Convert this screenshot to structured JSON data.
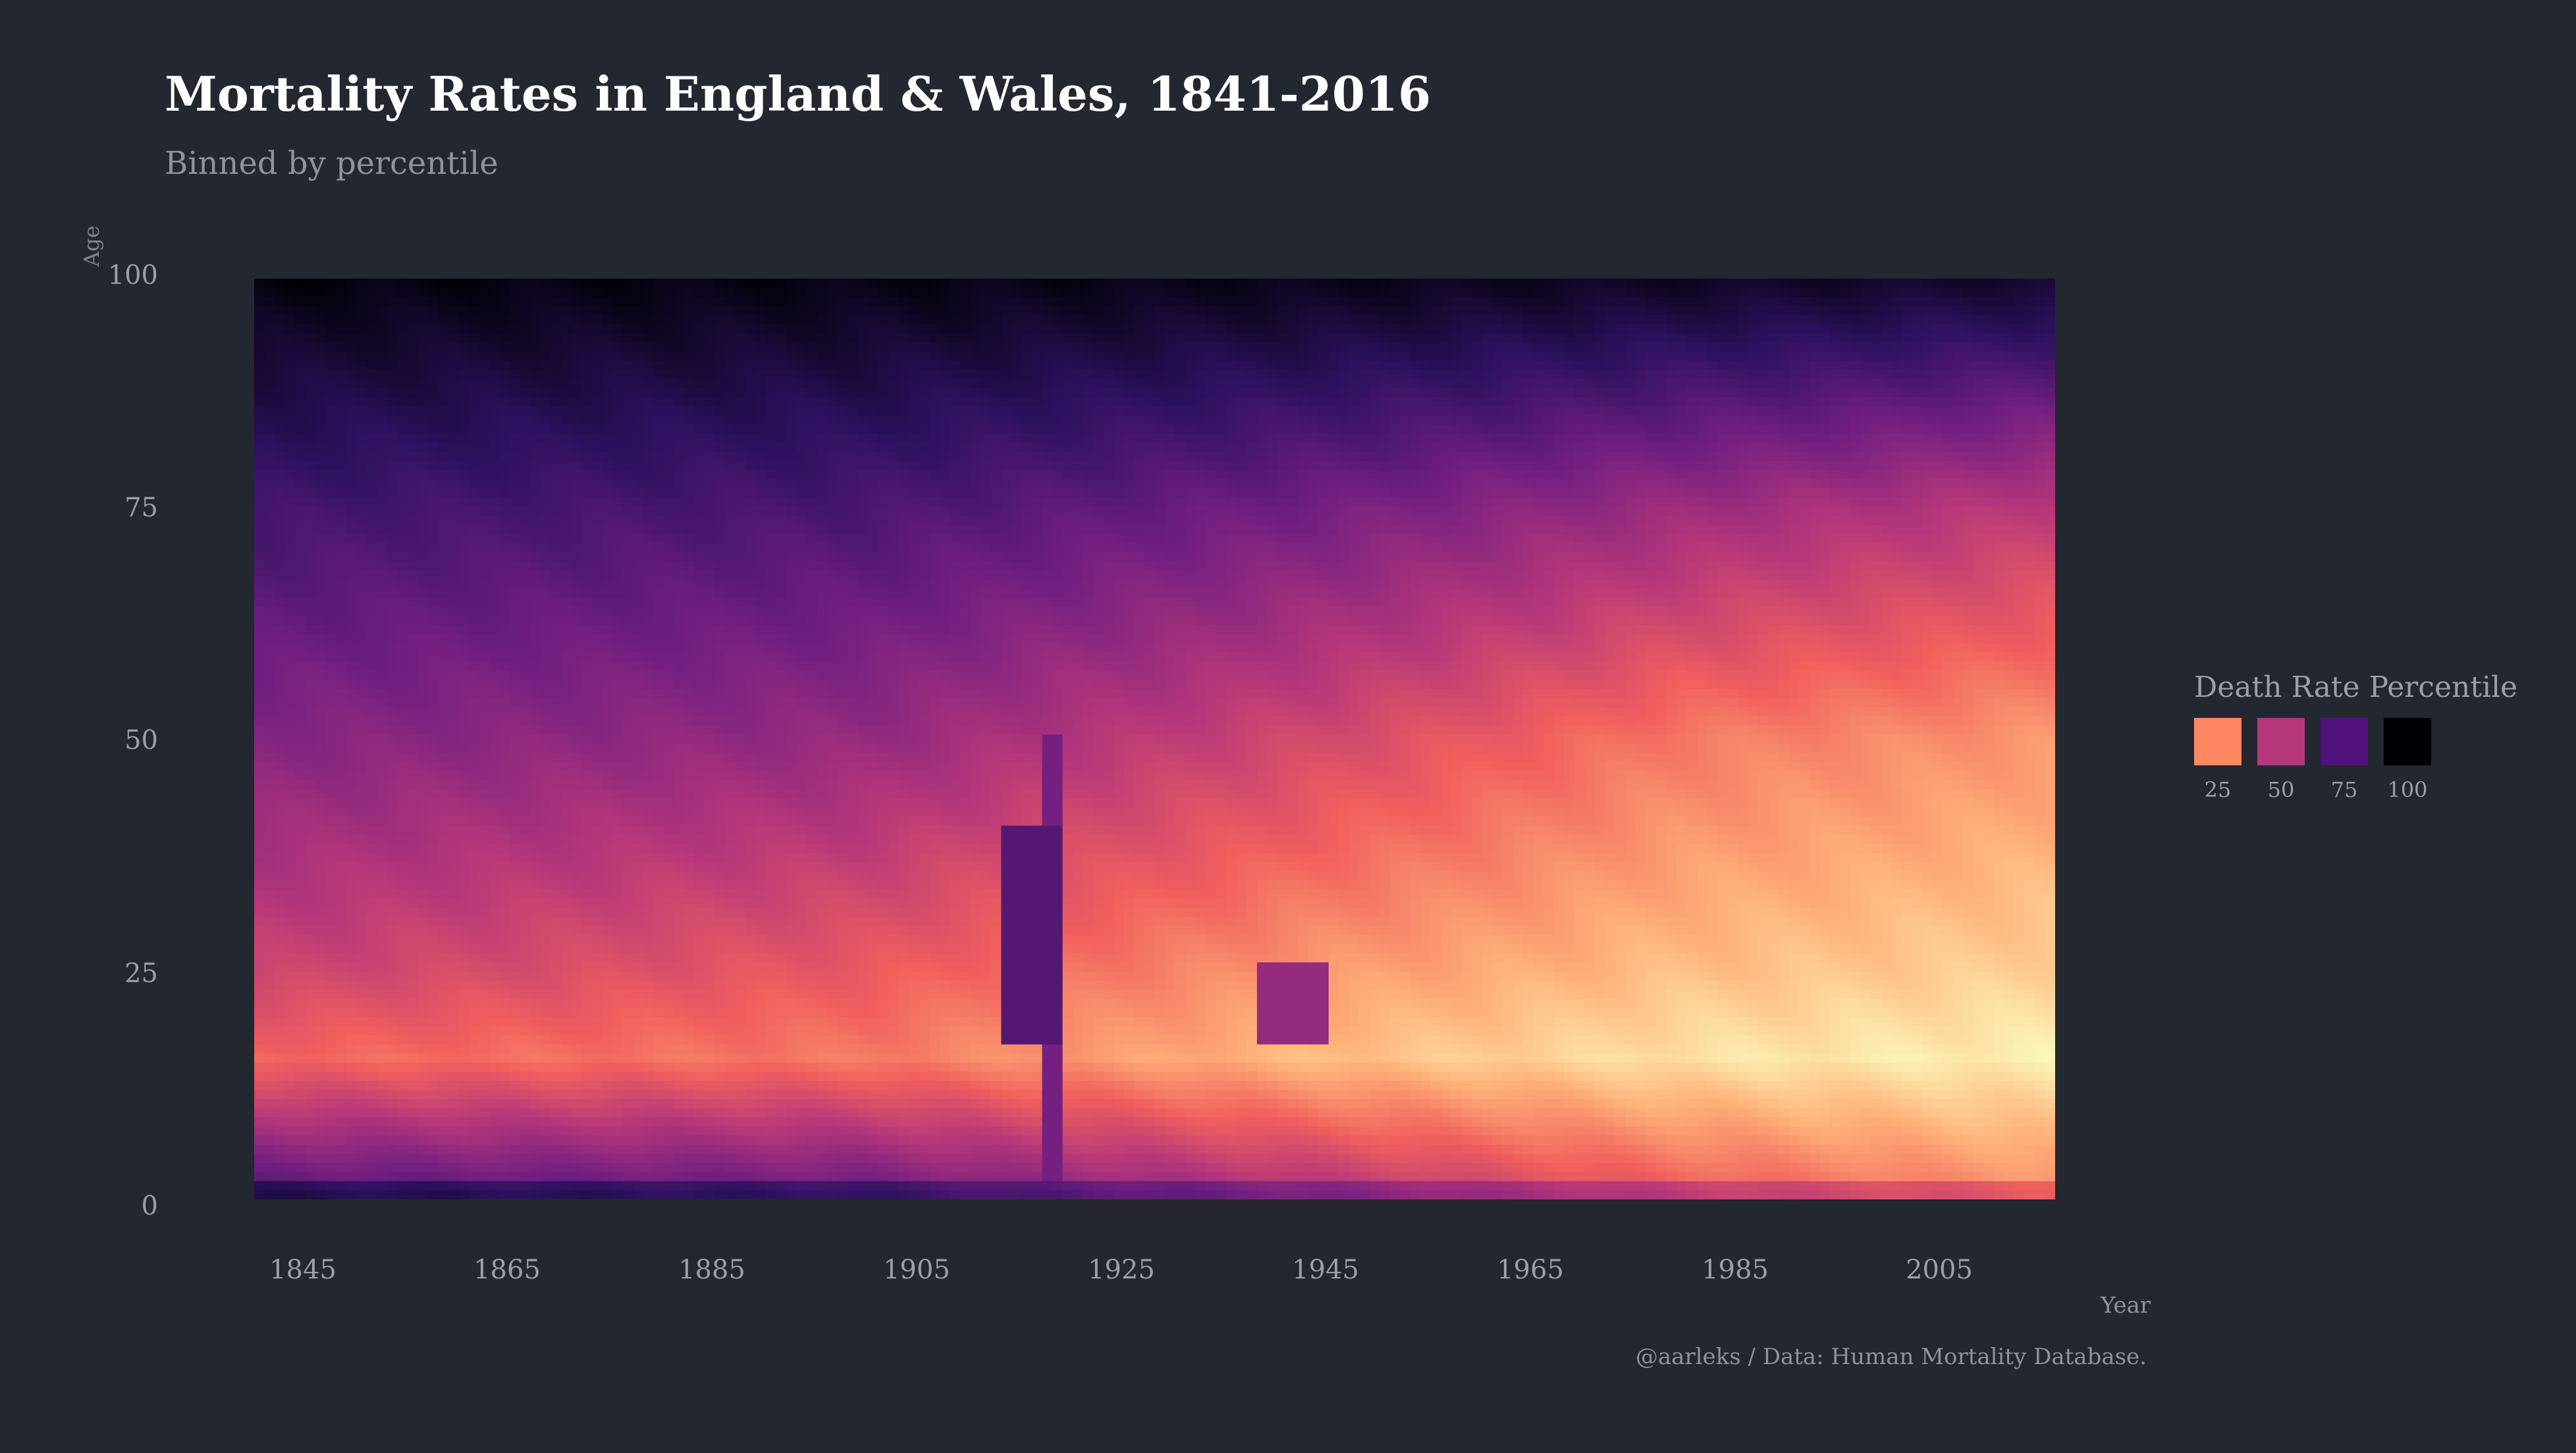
{
  "header": {
    "title": "Mortality Rates in England & Wales, 1841-2016",
    "subtitle": "Binned by percentile"
  },
  "caption": "@aarleks / Data: Human Mortality Database.",
  "chart_data": {
    "type": "heatmap",
    "title": "Mortality Rates in England & Wales, 1841-2016",
    "subtitle": "Binned by percentile",
    "xlabel": "Year",
    "ylabel": "Age",
    "x_range": [
      1841,
      2016
    ],
    "y_range": [
      0,
      100
    ],
    "x_ticks": [
      "1845",
      "1865",
      "1885",
      "1905",
      "1925",
      "1945",
      "1965",
      "1985",
      "2005"
    ],
    "y_ticks": [
      "0",
      "25",
      "50",
      "75",
      "100"
    ],
    "value_description": "death rate percentile, 0-100",
    "features": {
      "bands": [
        {
          "from_year": 1841,
          "value_age0": 75,
          "value_age15": 32,
          "value_age25": 45,
          "value_age50": 62,
          "value_age75": 78,
          "value_age100": 98
        },
        {
          "from_year": 1900,
          "value_age0": 70,
          "value_age15": 28,
          "value_age25": 36,
          "value_age50": 58,
          "value_age75": 76,
          "value_age100": 97
        },
        {
          "from_year": 1945,
          "value_age0": 52,
          "value_age15": 14,
          "value_age25": 22,
          "value_age50": 42,
          "value_age75": 66,
          "value_age100": 96
        },
        {
          "from_year": 1980,
          "value_age0": 36,
          "value_age15": 6,
          "value_age25": 14,
          "value_age50": 28,
          "value_age75": 56,
          "value_age100": 94
        },
        {
          "from_year": 2016,
          "value_age0": 24,
          "value_age15": 3,
          "value_age25": 10,
          "value_age50": 22,
          "value_age75": 48,
          "value_age100": 92
        }
      ],
      "anomalies": [
        {
          "year_from": 1914,
          "year_to": 1919,
          "age_from": 17,
          "age_to": 40,
          "value": 74
        },
        {
          "year_from": 1939,
          "year_to": 1945,
          "age_from": 17,
          "age_to": 25,
          "value": 58
        },
        {
          "year_from": 1918,
          "year_to": 1919,
          "age_from": 0,
          "age_to": 50,
          "value": 66
        }
      ]
    },
    "legend": {
      "title": "Death Rate Percentile",
      "placement": "right",
      "items": [
        {
          "label": "25",
          "color": "#fc8761"
        },
        {
          "label": "50",
          "color": "#b5367a"
        },
        {
          "label": "75",
          "color": "#51127c"
        },
        {
          "label": "100",
          "color": "#000004"
        }
      ]
    },
    "colorscale": [
      "#fcfdbf",
      "#feb078",
      "#f1605d",
      "#b5367a",
      "#721f81",
      "#2c115f",
      "#000004"
    ],
    "grid": false
  }
}
